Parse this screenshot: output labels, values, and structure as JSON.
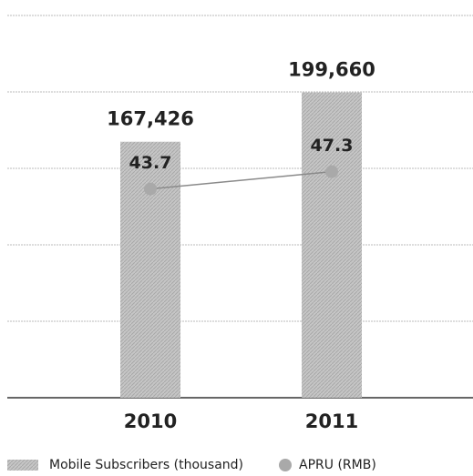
{
  "chart_data": {
    "type": "bar",
    "categories": [
      "2010",
      "2011"
    ],
    "series": [
      {
        "name": "Mobile Subscribers (thousand)",
        "color": "#bdbdbd",
        "values": [
          167426,
          199660
        ],
        "value_labels": [
          "167,426",
          "199,660"
        ]
      },
      {
        "name": "APRU (RMB)",
        "color": "#a9a9a9",
        "type": "line",
        "axis": "y2",
        "values": [
          43.7,
          47.3
        ]
      }
    ],
    "ylim": [
      0,
      250000
    ],
    "yticks": [
      0,
      50000,
      100000,
      150000,
      200000,
      250000
    ],
    "y2lim": [
      0,
      80
    ],
    "grid": true,
    "legend": "bottom"
  }
}
